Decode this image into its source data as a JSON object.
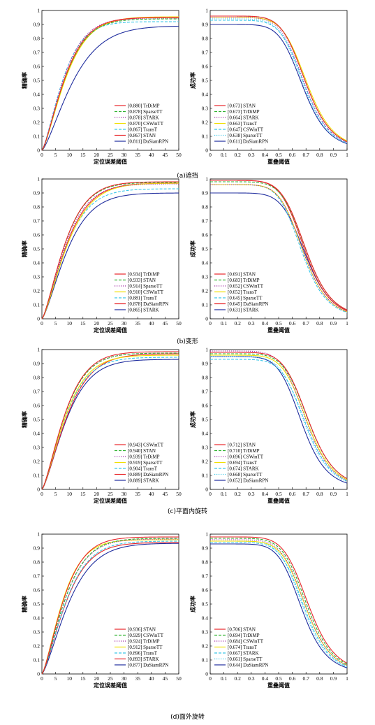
{
  "rows": [
    {
      "caption": "(a)遮挡",
      "charts": [
        {
          "type": "line",
          "kind": "precision",
          "xlabel": "定位误差阈值",
          "ylabel": "精确率",
          "xlim": [
            0,
            50
          ],
          "ylim": [
            0,
            1.0
          ],
          "x_ticks": [
            0,
            5,
            10,
            15,
            20,
            25,
            30,
            35,
            40,
            45,
            50
          ],
          "y_ticks": [
            0,
            0.1,
            0.2,
            0.3,
            0.4,
            0.5,
            0.6,
            0.7,
            0.8,
            0.9,
            1.0
          ],
          "series": [
            {
              "name": "[0.880] TrDiMP",
              "color": "#e8262a",
              "dash": "solid",
              "final": 0.95,
              "shape": 1.0
            },
            {
              "name": "[0.878] SparseTT",
              "color": "#33b233",
              "dash": "dashed",
              "final": 0.94,
              "shape": 1.0
            },
            {
              "name": "[0.878] STARK",
              "color": "#a12ca5",
              "dash": "dotted",
              "final": 0.945,
              "shape": 1.05
            },
            {
              "name": "[0.870] CSWinTT",
              "color": "#f0e000",
              "dash": "solid",
              "final": 0.955,
              "shape": 0.95
            },
            {
              "name": "[0.867] TransT",
              "color": "#3bc7e8",
              "dash": "dashed",
              "final": 0.92,
              "shape": 1.1
            },
            {
              "name": "[0.867] STAN",
              "color": "#e8262a",
              "dash": "solid",
              "final": 0.95,
              "shape": 0.97
            },
            {
              "name": "[0.811] DaSiamRPN",
              "color": "#1f2d9e",
              "dash": "solid",
              "final": 0.89,
              "shape": 0.75
            }
          ]
        },
        {
          "type": "line",
          "kind": "success",
          "xlabel": "重叠阈值",
          "ylabel": "成功率",
          "xlim": [
            0,
            1.0
          ],
          "ylim": [
            0,
            1.0
          ],
          "x_ticks": [
            0,
            0.1,
            0.2,
            0.3,
            0.4,
            0.5,
            0.6,
            0.7,
            0.8,
            0.9,
            1.0
          ],
          "y_ticks": [
            0,
            0.1,
            0.2,
            0.3,
            0.4,
            0.5,
            0.6,
            0.7,
            0.8,
            0.9,
            1.0
          ],
          "series": [
            {
              "name": "[0.673] STAN",
              "color": "#e8262a",
              "dash": "solid",
              "start": 0.96,
              "mid": 0.7
            },
            {
              "name": "[0.673] TrDiMP",
              "color": "#33b233",
              "dash": "dashed",
              "start": 0.96,
              "mid": 0.7
            },
            {
              "name": "[0.664] STARK",
              "color": "#a12ca5",
              "dash": "dotted",
              "start": 0.95,
              "mid": 0.69
            },
            {
              "name": "[0.663] TransT",
              "color": "#f0e000",
              "dash": "solid",
              "start": 0.95,
              "mid": 0.71
            },
            {
              "name": "[0.647] CSWinTT",
              "color": "#3bc7e8",
              "dash": "dashed",
              "start": 0.93,
              "mid": 0.69
            },
            {
              "name": "[0.638] SparseTT",
              "color": "#3bc7e8",
              "dash": "dotted",
              "start": 0.94,
              "mid": 0.68
            },
            {
              "name": "[0.611] DaSiamRPN",
              "color": "#1f2d9e",
              "dash": "solid",
              "start": 0.9,
              "mid": 0.68
            }
          ]
        }
      ]
    },
    {
      "caption": "(b)变形",
      "charts": [
        {
          "type": "line",
          "kind": "precision",
          "xlabel": "定位误差阈值",
          "ylabel": "精确率",
          "xlim": [
            0,
            50
          ],
          "ylim": [
            0,
            1.0
          ],
          "x_ticks": [
            0,
            5,
            10,
            15,
            20,
            25,
            30,
            35,
            40,
            45,
            50
          ],
          "y_ticks": [
            0,
            0.1,
            0.2,
            0.3,
            0.4,
            0.5,
            0.6,
            0.7,
            0.8,
            0.9,
            1.0
          ],
          "series": [
            {
              "name": "[0.934] TrDiMP",
              "color": "#e8262a",
              "dash": "solid",
              "final": 0.98,
              "shape": 1.0
            },
            {
              "name": "[0.933] STAN",
              "color": "#33b233",
              "dash": "dashed",
              "final": 0.975,
              "shape": 1.0
            },
            {
              "name": "[0.914] SparseTT",
              "color": "#a12ca5",
              "dash": "dotted",
              "final": 0.965,
              "shape": 0.97
            },
            {
              "name": "[0.910] CSWinTT",
              "color": "#f0e000",
              "dash": "solid",
              "final": 0.97,
              "shape": 0.9
            },
            {
              "name": "[0.881] TransT",
              "color": "#3bc7e8",
              "dash": "dashed",
              "final": 0.93,
              "shape": 0.95
            },
            {
              "name": "[0.878] DaSiamRPN",
              "color": "#e8262a",
              "dash": "solid",
              "final": 0.97,
              "shape": 0.93
            },
            {
              "name": "[0.865] STARK",
              "color": "#1f2d9e",
              "dash": "solid",
              "final": 0.9,
              "shape": 0.9
            }
          ]
        },
        {
          "type": "line",
          "kind": "success",
          "xlabel": "重叠阈值",
          "ylabel": "成功率",
          "xlim": [
            0,
            1.0
          ],
          "ylim": [
            0,
            1.0
          ],
          "x_ticks": [
            0,
            0.1,
            0.2,
            0.3,
            0.4,
            0.5,
            0.6,
            0.7,
            0.8,
            0.9,
            1.0
          ],
          "y_ticks": [
            0,
            0.1,
            0.2,
            0.3,
            0.4,
            0.5,
            0.6,
            0.7,
            0.8,
            0.9,
            1.0
          ],
          "series": [
            {
              "name": "[0.691] STAN",
              "color": "#e8262a",
              "dash": "solid",
              "start": 0.99,
              "mid": 0.7
            },
            {
              "name": "[0.683] TrDiMP",
              "color": "#33b233",
              "dash": "dashed",
              "start": 0.98,
              "mid": 0.7
            },
            {
              "name": "[0.652] CSWinTT",
              "color": "#a12ca5",
              "dash": "dotted",
              "start": 0.96,
              "mid": 0.68
            },
            {
              "name": "[0.652] TransT",
              "color": "#f0e000",
              "dash": "solid",
              "start": 0.96,
              "mid": 0.68
            },
            {
              "name": "[0.645] SparseTT",
              "color": "#3bc7e8",
              "dash": "dashed",
              "start": 0.96,
              "mid": 0.67
            },
            {
              "name": "[0.645] DaSiamRPN",
              "color": "#e8262a",
              "dash": "solid",
              "start": 0.99,
              "mid": 0.69
            },
            {
              "name": "[0.631] STARK",
              "color": "#1f2d9e",
              "dash": "solid",
              "start": 0.9,
              "mid": 0.7
            }
          ]
        }
      ]
    },
    {
      "caption": "(c)平面内旋转",
      "charts": [
        {
          "type": "line",
          "kind": "precision",
          "xlabel": "定位误差阈值",
          "ylabel": "精确率",
          "xlim": [
            0,
            50
          ],
          "ylim": [
            0,
            1.0
          ],
          "x_ticks": [
            0,
            5,
            10,
            15,
            20,
            25,
            30,
            35,
            40,
            45,
            50
          ],
          "y_ticks": [
            0,
            0.1,
            0.2,
            0.3,
            0.4,
            0.5,
            0.6,
            0.7,
            0.8,
            0.9,
            1.0
          ],
          "series": [
            {
              "name": "[0.943] CSWinTT",
              "color": "#e8262a",
              "dash": "solid",
              "final": 0.985,
              "shape": 1.0
            },
            {
              "name": "[0.940] STAN",
              "color": "#33b233",
              "dash": "dashed",
              "final": 0.975,
              "shape": 1.0
            },
            {
              "name": "[0.939] TrDiMP",
              "color": "#a12ca5",
              "dash": "dotted",
              "final": 0.975,
              "shape": 1.0
            },
            {
              "name": "[0.919] SparseTT",
              "color": "#f0e000",
              "dash": "solid",
              "final": 0.96,
              "shape": 0.97
            },
            {
              "name": "[0.904] TransT",
              "color": "#3bc7e8",
              "dash": "dashed",
              "final": 0.945,
              "shape": 0.97
            },
            {
              "name": "[0.889] DaSiamRPN",
              "color": "#e8262a",
              "dash": "solid",
              "final": 0.97,
              "shape": 0.9
            },
            {
              "name": "[0.889] STARK",
              "color": "#1f2d9e",
              "dash": "solid",
              "final": 0.93,
              "shape": 0.92
            }
          ]
        },
        {
          "type": "line",
          "kind": "success",
          "xlabel": "重叠阈值",
          "ylabel": "成功率",
          "xlim": [
            0,
            1.0
          ],
          "ylim": [
            0,
            1.0
          ],
          "x_ticks": [
            0,
            0.1,
            0.2,
            0.3,
            0.4,
            0.5,
            0.6,
            0.7,
            0.8,
            0.9,
            1.0
          ],
          "y_ticks": [
            0,
            0.1,
            0.2,
            0.3,
            0.4,
            0.5,
            0.6,
            0.7,
            0.8,
            0.9,
            1.0
          ],
          "series": [
            {
              "name": "[0.712] STAN",
              "color": "#e8262a",
              "dash": "solid",
              "start": 0.98,
              "mid": 0.72
            },
            {
              "name": "[0.710] TrDiMP",
              "color": "#33b233",
              "dash": "dashed",
              "start": 0.97,
              "mid": 0.72
            },
            {
              "name": "[0.696] CSWinTT",
              "color": "#a12ca5",
              "dash": "dotted",
              "start": 0.99,
              "mid": 0.7
            },
            {
              "name": "[0.694] TransT",
              "color": "#f0e000",
              "dash": "solid",
              "start": 0.96,
              "mid": 0.71
            },
            {
              "name": "[0.674] STARK",
              "color": "#3bc7e8",
              "dash": "dashed",
              "start": 0.93,
              "mid": 0.7
            },
            {
              "name": "[0.668] SparseTT",
              "color": "#3bc7e8",
              "dash": "dotted",
              "start": 0.95,
              "mid": 0.69
            },
            {
              "name": "[0.652] DaSiamRPN",
              "color": "#1f2d9e",
              "dash": "solid",
              "start": 0.95,
              "mid": 0.67
            }
          ]
        }
      ]
    },
    {
      "caption": "(d)面外旋转",
      "charts": [
        {
          "type": "line",
          "kind": "precision",
          "xlabel": "定位误差阈值",
          "ylabel": "精确率",
          "xlim": [
            0,
            50
          ],
          "ylim": [
            0,
            1.0
          ],
          "x_ticks": [
            0,
            5,
            10,
            15,
            20,
            25,
            30,
            35,
            40,
            45,
            50
          ],
          "y_ticks": [
            0,
            0.1,
            0.2,
            0.3,
            0.4,
            0.5,
            0.6,
            0.7,
            0.8,
            0.9,
            1.0
          ],
          "series": [
            {
              "name": "[0.936] STAN",
              "color": "#e8262a",
              "dash": "solid",
              "final": 0.98,
              "shape": 1.05
            },
            {
              "name": "[0.929] CSWinTT",
              "color": "#33b233",
              "dash": "dashed",
              "final": 0.97,
              "shape": 1.0
            },
            {
              "name": "[0.924] TrDiMP",
              "color": "#a12ca5",
              "dash": "dotted",
              "final": 0.965,
              "shape": 1.0
            },
            {
              "name": "[0.912] SparseTT",
              "color": "#f0e000",
              "dash": "solid",
              "final": 0.96,
              "shape": 1.1
            },
            {
              "name": "[0.896] TransT",
              "color": "#3bc7e8",
              "dash": "dashed",
              "final": 0.95,
              "shape": 0.95
            },
            {
              "name": "[0.893] STARK",
              "color": "#e8262a",
              "dash": "solid",
              "final": 0.94,
              "shape": 0.95
            },
            {
              "name": "[0.877] DaSiamRPN",
              "color": "#1f2d9e",
              "dash": "solid",
              "final": 0.935,
              "shape": 0.85
            }
          ]
        },
        {
          "type": "line",
          "kind": "success",
          "xlabel": "重叠阈值",
          "ylabel": "成功率",
          "xlim": [
            0,
            1.0
          ],
          "ylim": [
            0,
            1.0
          ],
          "x_ticks": [
            0,
            0.1,
            0.2,
            0.3,
            0.4,
            0.5,
            0.6,
            0.7,
            0.8,
            0.9,
            1.0
          ],
          "y_ticks": [
            0,
            0.1,
            0.2,
            0.3,
            0.4,
            0.5,
            0.6,
            0.7,
            0.8,
            0.9,
            1.0
          ],
          "series": [
            {
              "name": "[0.706] STAN",
              "color": "#e8262a",
              "dash": "solid",
              "start": 0.98,
              "mid": 0.72
            },
            {
              "name": "[0.694] TrDiMP",
              "color": "#33b233",
              "dash": "dashed",
              "start": 0.97,
              "mid": 0.71
            },
            {
              "name": "[0.684] CSWinTT",
              "color": "#a12ca5",
              "dash": "dotted",
              "start": 0.96,
              "mid": 0.7
            },
            {
              "name": "[0.674] TransT",
              "color": "#f0e000",
              "dash": "solid",
              "start": 0.95,
              "mid": 0.7
            },
            {
              "name": "[0.667] STARK",
              "color": "#3bc7e8",
              "dash": "dashed",
              "start": 0.94,
              "mid": 0.69
            },
            {
              "name": "[0.661] SparseTT",
              "color": "#3bc7e8",
              "dash": "dotted",
              "start": 0.95,
              "mid": 0.68
            },
            {
              "name": "[0.644] DaSiamRPN",
              "color": "#1f2d9e",
              "dash": "solid",
              "start": 0.93,
              "mid": 0.67
            }
          ]
        }
      ]
    }
  ]
}
